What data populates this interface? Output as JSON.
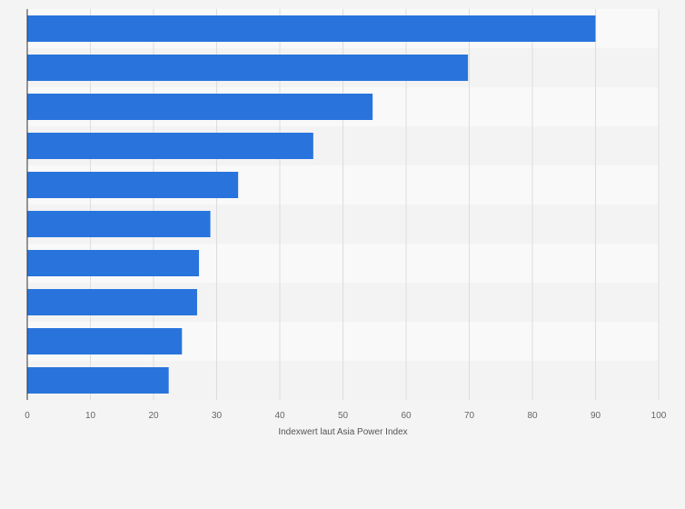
{
  "colors": {
    "bar": "#2874dc",
    "band_light": "#f9f9f9",
    "band_dark": "#f3f3f3",
    "grid": "#dddddd",
    "axis": "#333333",
    "background": "#f4f4f4"
  },
  "chart_data": {
    "type": "bar",
    "orientation": "horizontal",
    "title": "",
    "xlabel": "Indexwert laut Asia Power Index",
    "ylabel": "",
    "categories": [
      "",
      "",
      "",
      "",
      "",
      "",
      "",
      "",
      "",
      ""
    ],
    "values": [
      90.0,
      69.8,
      54.7,
      45.3,
      33.4,
      29.0,
      27.2,
      26.9,
      24.5,
      22.4
    ],
    "xlim": [
      0,
      100
    ],
    "xticks": [
      0,
      10,
      20,
      30,
      40,
      50,
      60,
      70,
      80,
      90,
      100
    ],
    "grid": true,
    "legend": "none"
  }
}
